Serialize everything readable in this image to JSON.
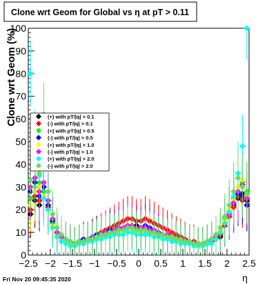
{
  "title": "Clone wrt Geom for Global vs   η at pT > 0.11",
  "timestamp": "Fri Nov 20 09:45:35 2020",
  "chart_data": {
    "type": "scatter",
    "title": "Clone wrt Geom for Global vs   η at pT > 0.11",
    "xlabel": "η",
    "ylabel": "Clone wrt Geom (%)",
    "xlim": [
      -2.5,
      2.5
    ],
    "ylim": [
      0,
      100
    ],
    "x_ticks": [
      "−2.5",
      "−2",
      "−1.5",
      "−1",
      "−0.5",
      "0",
      "0.5",
      "1",
      "1.5",
      "2",
      "2.5"
    ],
    "y_ticks": [
      "0",
      "10",
      "20",
      "30",
      "40",
      "50",
      "60",
      "70",
      "80",
      "90",
      "100"
    ],
    "grid": false,
    "legend_position": "left-middle",
    "series": [
      {
        "name": "(+) with pT/|q| > 0.1",
        "color": "#000000",
        "x": [
          -2.45,
          -2.35,
          -2.25,
          -2.15,
          -2.05,
          -1.95,
          -1.85,
          -1.75,
          -1.65,
          -1.55,
          -1.45,
          -1.35,
          -1.25,
          -1.15,
          -1.05,
          -0.95,
          -0.85,
          -0.75,
          -0.65,
          -0.55,
          -0.45,
          -0.35,
          -0.25,
          -0.15,
          -0.05,
          0.05,
          0.15,
          0.25,
          0.35,
          0.45,
          0.55,
          0.65,
          0.75,
          0.85,
          0.95,
          1.05,
          1.15,
          1.25,
          1.35,
          1.45,
          1.55,
          1.65,
          1.75,
          1.85,
          1.95,
          2.05,
          2.15,
          2.25,
          2.35,
          2.45
        ],
        "y": [
          18,
          24,
          22,
          28,
          20,
          15,
          9,
          7,
          6,
          5,
          5,
          6,
          6,
          7,
          7,
          8,
          8,
          9,
          9,
          10,
          10,
          11,
          12,
          12,
          13,
          11,
          12,
          11,
          10,
          9,
          9,
          8,
          8,
          7,
          7,
          6,
          6,
          5,
          5,
          5,
          5,
          6,
          7,
          8,
          14,
          18,
          22,
          25,
          27,
          24
        ]
      },
      {
        "name": "(-) with pT/|q| > 0.1",
        "color": "#ff0000",
        "x": [
          -2.45,
          -2.35,
          -2.25,
          -2.15,
          -2.05,
          -1.95,
          -1.85,
          -1.75,
          -1.65,
          -1.55,
          -1.45,
          -1.35,
          -1.25,
          -1.15,
          -1.05,
          -0.95,
          -0.85,
          -0.75,
          -0.65,
          -0.55,
          -0.45,
          -0.35,
          -0.25,
          -0.15,
          -0.05,
          0.05,
          0.15,
          0.25,
          0.35,
          0.45,
          0.55,
          0.65,
          0.75,
          0.85,
          0.95,
          1.05,
          1.15,
          1.25,
          1.35,
          1.45,
          1.55,
          1.65,
          1.75,
          1.85,
          1.95,
          2.05,
          2.15,
          2.25,
          2.35,
          2.45
        ],
        "y": [
          20,
          26,
          24,
          30,
          21,
          14,
          9,
          7,
          6,
          5,
          5,
          6,
          7,
          7,
          8,
          9,
          10,
          11,
          12,
          13,
          14,
          15,
          16,
          16,
          15,
          15,
          16,
          15,
          14,
          13,
          12,
          11,
          10,
          9,
          8,
          7,
          6,
          6,
          5,
          5,
          5,
          6,
          7,
          9,
          13,
          17,
          21,
          26,
          24,
          22
        ]
      },
      {
        "name": "(+) with pT/|q| > 0.5",
        "color": "#00ff00",
        "x": [
          -2.45,
          -2.35,
          -2.25,
          -2.15,
          -2.05,
          -1.95,
          -1.85,
          -1.75,
          -1.65,
          -1.55,
          -1.45,
          -1.35,
          -1.25,
          -1.15,
          -1.05,
          -0.95,
          -0.85,
          -0.75,
          -0.65,
          -0.55,
          -0.45,
          -0.35,
          -0.25,
          -0.15,
          -0.05,
          0.05,
          0.15,
          0.25,
          0.35,
          0.45,
          0.55,
          0.65,
          0.75,
          0.85,
          0.95,
          1.05,
          1.15,
          1.25,
          1.35,
          1.45,
          1.55,
          1.65,
          1.75,
          1.85,
          1.95,
          2.05,
          2.15,
          2.25,
          2.35,
          2.45
        ],
        "y": [
          25,
          30,
          32,
          28,
          22,
          14,
          10,
          8,
          6,
          5,
          5,
          6,
          6,
          7,
          7,
          8,
          8,
          9,
          9,
          10,
          11,
          11,
          12,
          11,
          10,
          10,
          11,
          10,
          9,
          9,
          8,
          8,
          7,
          7,
          6,
          6,
          5,
          5,
          5,
          5,
          6,
          7,
          9,
          12,
          16,
          20,
          25,
          30,
          32,
          28
        ]
      },
      {
        "name": "(-) with pT/|q| > 0.5",
        "color": "#0000ff",
        "x": [
          -2.45,
          -2.35,
          -2.25,
          -2.15,
          -2.05,
          -1.95,
          -1.85,
          -1.75,
          -1.65,
          -1.55,
          -1.45,
          -1.35,
          -1.25,
          -1.15,
          -1.05,
          -0.95,
          -0.85,
          -0.75,
          -0.65,
          -0.55,
          -0.45,
          -0.35,
          -0.25,
          -0.15,
          -0.05,
          0.05,
          0.15,
          0.25,
          0.35,
          0.45,
          0.55,
          0.65,
          0.75,
          0.85,
          0.95,
          1.05,
          1.15,
          1.25,
          1.35,
          1.45,
          1.55,
          1.65,
          1.75,
          1.85,
          1.95,
          2.05,
          2.15,
          2.25,
          2.35,
          2.45
        ],
        "y": [
          28,
          32,
          26,
          30,
          22,
          15,
          10,
          8,
          7,
          6,
          5,
          6,
          7,
          7,
          8,
          9,
          9,
          10,
          11,
          11,
          12,
          12,
          13,
          13,
          12,
          12,
          13,
          12,
          11,
          10,
          9,
          9,
          8,
          7,
          7,
          6,
          6,
          5,
          5,
          5,
          6,
          7,
          8,
          11,
          15,
          19,
          23,
          27,
          26,
          22
        ]
      },
      {
        "name": "(+) with pT/|q| > 1.0",
        "color": "#ffff00",
        "x": [
          -2.45,
          -2.35,
          -2.25,
          -2.15,
          -2.05,
          -1.95,
          -1.85,
          -1.75,
          -1.65,
          -1.55,
          -1.45,
          -1.35,
          -1.25,
          -1.15,
          -1.05,
          -0.95,
          -0.85,
          -0.75,
          -0.65,
          -0.55,
          -0.45,
          -0.35,
          -0.25,
          -0.15,
          -0.05,
          0.05,
          0.15,
          0.25,
          0.35,
          0.45,
          0.55,
          0.65,
          0.75,
          0.85,
          0.95,
          1.05,
          1.15,
          1.25,
          1.35,
          1.45,
          1.55,
          1.65,
          1.75,
          1.85,
          1.95,
          2.05,
          2.15,
          2.25,
          2.35,
          2.45
        ],
        "y": [
          22,
          28,
          30,
          26,
          20,
          13,
          9,
          7,
          6,
          5,
          4,
          5,
          6,
          6,
          7,
          7,
          8,
          8,
          9,
          9,
          10,
          10,
          10,
          11,
          10,
          9,
          10,
          9,
          9,
          8,
          8,
          7,
          7,
          6,
          6,
          5,
          5,
          5,
          4,
          4,
          5,
          6,
          8,
          11,
          15,
          20,
          24,
          30,
          33,
          26
        ]
      },
      {
        "name": "(-) with pT/|q| > 1.0",
        "color": "#ff00ff",
        "x": [
          -2.45,
          -2.35,
          -2.25,
          -2.15,
          -2.05,
          -1.95,
          -1.85,
          -1.75,
          -1.65,
          -1.55,
          -1.45,
          -1.35,
          -1.25,
          -1.15,
          -1.05,
          -0.95,
          -0.85,
          -0.75,
          -0.65,
          -0.55,
          -0.45,
          -0.35,
          -0.25,
          -0.15,
          -0.05,
          0.05,
          0.15,
          0.25,
          0.35,
          0.45,
          0.55,
          0.65,
          0.75,
          0.85,
          0.95,
          1.05,
          1.15,
          1.25,
          1.35,
          1.45,
          1.55,
          1.65,
          1.75,
          1.85,
          1.95,
          2.05,
          2.15,
          2.25,
          2.35,
          2.45
        ],
        "y": [
          30,
          34,
          28,
          32,
          24,
          16,
          10,
          8,
          7,
          6,
          5,
          6,
          6,
          7,
          8,
          8,
          9,
          10,
          10,
          11,
          12,
          12,
          13,
          13,
          12,
          12,
          12,
          11,
          11,
          10,
          9,
          9,
          8,
          7,
          7,
          6,
          6,
          5,
          5,
          5,
          5,
          6,
          8,
          10,
          14,
          18,
          23,
          28,
          31,
          25
        ]
      },
      {
        "name": "(+) with pT/|q| > 2.0",
        "color": "#00ffff",
        "x": [
          -2.45,
          -2.35,
          -2.25,
          -2.15,
          -2.05,
          -1.95,
          -1.85,
          -1.75,
          -1.65,
          -1.55,
          -1.45,
          -1.35,
          -1.25,
          -1.15,
          -1.05,
          -0.95,
          -0.85,
          -0.75,
          -0.65,
          -0.55,
          -0.45,
          -0.35,
          -0.25,
          -0.15,
          -0.05,
          0.05,
          0.15,
          0.25,
          0.35,
          0.45,
          0.55,
          0.65,
          0.75,
          0.85,
          0.95,
          1.05,
          1.15,
          1.25,
          1.35,
          1.45,
          1.55,
          1.65,
          1.75,
          1.85,
          1.95,
          2.05,
          2.15,
          2.25,
          2.35,
          2.45
        ],
        "y": [
          80,
          50,
          35,
          25,
          20,
          12,
          8,
          6,
          5,
          4,
          4,
          5,
          5,
          6,
          6,
          7,
          7,
          8,
          8,
          9,
          9,
          9,
          10,
          10,
          9,
          9,
          9,
          9,
          8,
          8,
          7,
          7,
          6,
          6,
          5,
          5,
          5,
          4,
          4,
          4,
          5,
          5,
          7,
          10,
          14,
          19,
          26,
          36,
          48,
          100
        ]
      },
      {
        "name": "(-) with pT/|q| > 2.0",
        "color": "#66dd66",
        "x": [
          -2.45,
          -2.35,
          -2.25,
          -2.15,
          -2.05,
          -1.95,
          -1.85,
          -1.75,
          -1.65,
          -1.55,
          -1.45,
          -1.35,
          -1.25,
          -1.15,
          -1.05,
          -0.95,
          -0.85,
          -0.75,
          -0.65,
          -0.55,
          -0.45,
          -0.35,
          -0.25,
          -0.15,
          -0.05,
          0.05,
          0.15,
          0.25,
          0.35,
          0.45,
          0.55,
          0.65,
          0.75,
          0.85,
          0.95,
          1.05,
          1.15,
          1.25,
          1.35,
          1.45,
          1.55,
          1.65,
          1.75,
          1.85,
          1.95,
          2.05,
          2.15,
          2.25,
          2.35,
          2.45
        ],
        "y": [
          33,
          30,
          36,
          62,
          28,
          18,
          12,
          9,
          7,
          6,
          5,
          6,
          6,
          7,
          7,
          8,
          9,
          9,
          10,
          10,
          11,
          11,
          12,
          12,
          11,
          11,
          11,
          10,
          10,
          9,
          9,
          8,
          8,
          7,
          7,
          6,
          6,
          5,
          5,
          5,
          6,
          7,
          9,
          12,
          17,
          22,
          28,
          34,
          30,
          27
        ]
      }
    ]
  }
}
